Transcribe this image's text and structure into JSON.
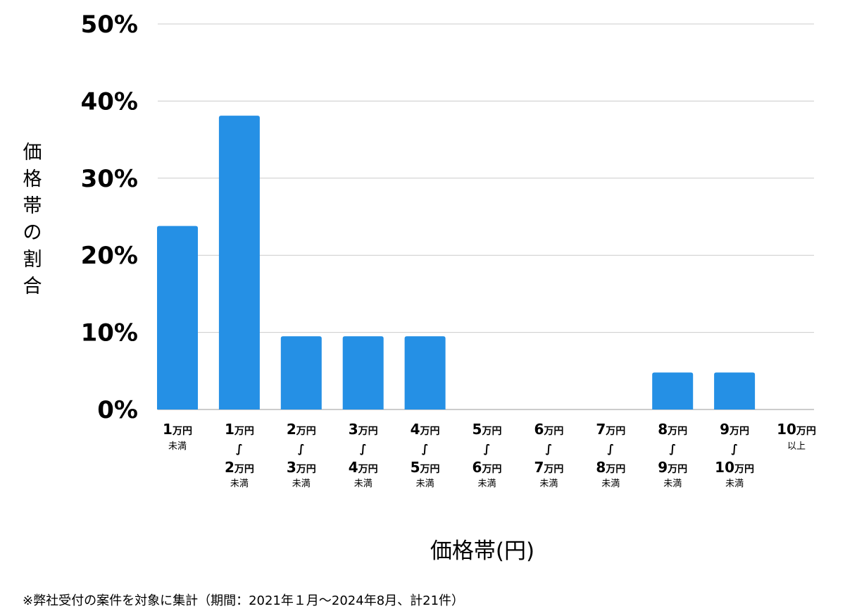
{
  "chart_data": {
    "type": "bar",
    "ylabel": "価格帯の割合",
    "xlabel": "価格帯(円)",
    "ylim": [
      0,
      50
    ],
    "yticks": [
      "0%",
      "10%",
      "20%",
      "30%",
      "40%",
      "50%"
    ],
    "ytick_values": [
      0,
      10,
      20,
      30,
      40,
      50
    ],
    "grid": true,
    "bar_color": "#2590E5",
    "categories": [
      {
        "from": "1",
        "from_unit": "万円",
        "to": "",
        "to_unit": "",
        "note": "未満"
      },
      {
        "from": "1",
        "from_unit": "万円",
        "to": "2",
        "to_unit": "万円",
        "note": "未満"
      },
      {
        "from": "2",
        "from_unit": "万円",
        "to": "3",
        "to_unit": "万円",
        "note": "未満"
      },
      {
        "from": "3",
        "from_unit": "万円",
        "to": "4",
        "to_unit": "万円",
        "note": "未満"
      },
      {
        "from": "4",
        "from_unit": "万円",
        "to": "5",
        "to_unit": "万円",
        "note": "未満"
      },
      {
        "from": "5",
        "from_unit": "万円",
        "to": "6",
        "to_unit": "万円",
        "note": "未満"
      },
      {
        "from": "6",
        "from_unit": "万円",
        "to": "7",
        "to_unit": "万円",
        "note": "未満"
      },
      {
        "from": "7",
        "from_unit": "万円",
        "to": "8",
        "to_unit": "万円",
        "note": "未満"
      },
      {
        "from": "8",
        "from_unit": "万円",
        "to": "9",
        "to_unit": "万円",
        "note": "未満"
      },
      {
        "from": "9",
        "from_unit": "万円",
        "to": "10",
        "to_unit": "万円",
        "note": "未満"
      },
      {
        "from": "10",
        "from_unit": "万円",
        "to": "",
        "to_unit": "",
        "note": "以上"
      }
    ],
    "tilde": "∫",
    "values": [
      23.8,
      38.1,
      9.5,
      9.5,
      9.5,
      0,
      0,
      0,
      4.8,
      4.8,
      0
    ]
  },
  "footnote": "※弊社受付の案件を対象に集計（期間：2021年１月〜2024年8月、計21件）"
}
